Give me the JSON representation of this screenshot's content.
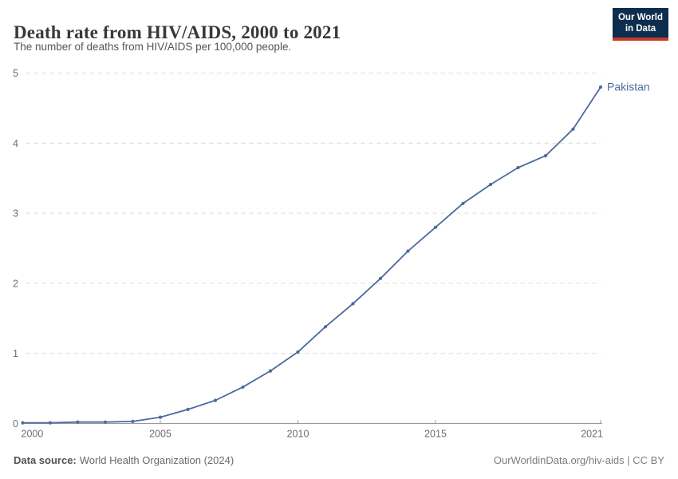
{
  "chart_data": {
    "type": "line",
    "title": "Death rate from HIV/AIDS, 2000 to 2021",
    "subtitle": "The number of deaths from HIV/AIDS per 100,000 people.",
    "x": [
      2000,
      2001,
      2002,
      2003,
      2004,
      2005,
      2006,
      2007,
      2008,
      2009,
      2010,
      2011,
      2012,
      2013,
      2014,
      2015,
      2016,
      2017,
      2018,
      2019,
      2020,
      2021
    ],
    "series": [
      {
        "name": "Pakistan",
        "color": "#4c6a9f",
        "values": [
          0.01,
          0.01,
          0.02,
          0.02,
          0.03,
          0.09,
          0.2,
          0.33,
          0.52,
          0.75,
          1.02,
          1.38,
          1.71,
          2.07,
          2.46,
          2.8,
          3.14,
          3.41,
          3.65,
          3.82,
          4.2,
          4.8
        ]
      }
    ],
    "xlabel": "",
    "ylabel": "",
    "xlim": [
      2000,
      2021
    ],
    "ylim": [
      0,
      5
    ],
    "yticks": [
      0,
      1,
      2,
      3,
      4,
      5
    ],
    "xticks": [
      2000,
      2005,
      2010,
      2015,
      2021
    ],
    "grid": "horizontal-dashed",
    "legend": "end-of-line-label"
  },
  "logo": {
    "line1": "Our World",
    "line2": "in Data",
    "bg_color": "#0d2d4e",
    "bar_color": "#c53a28"
  },
  "footer": {
    "source_label": "Data source:",
    "source_text": "World Health Organization (2024)",
    "credit_link": "OurWorldinData.org/hiv-aids",
    "credit_license": " | CC BY"
  }
}
